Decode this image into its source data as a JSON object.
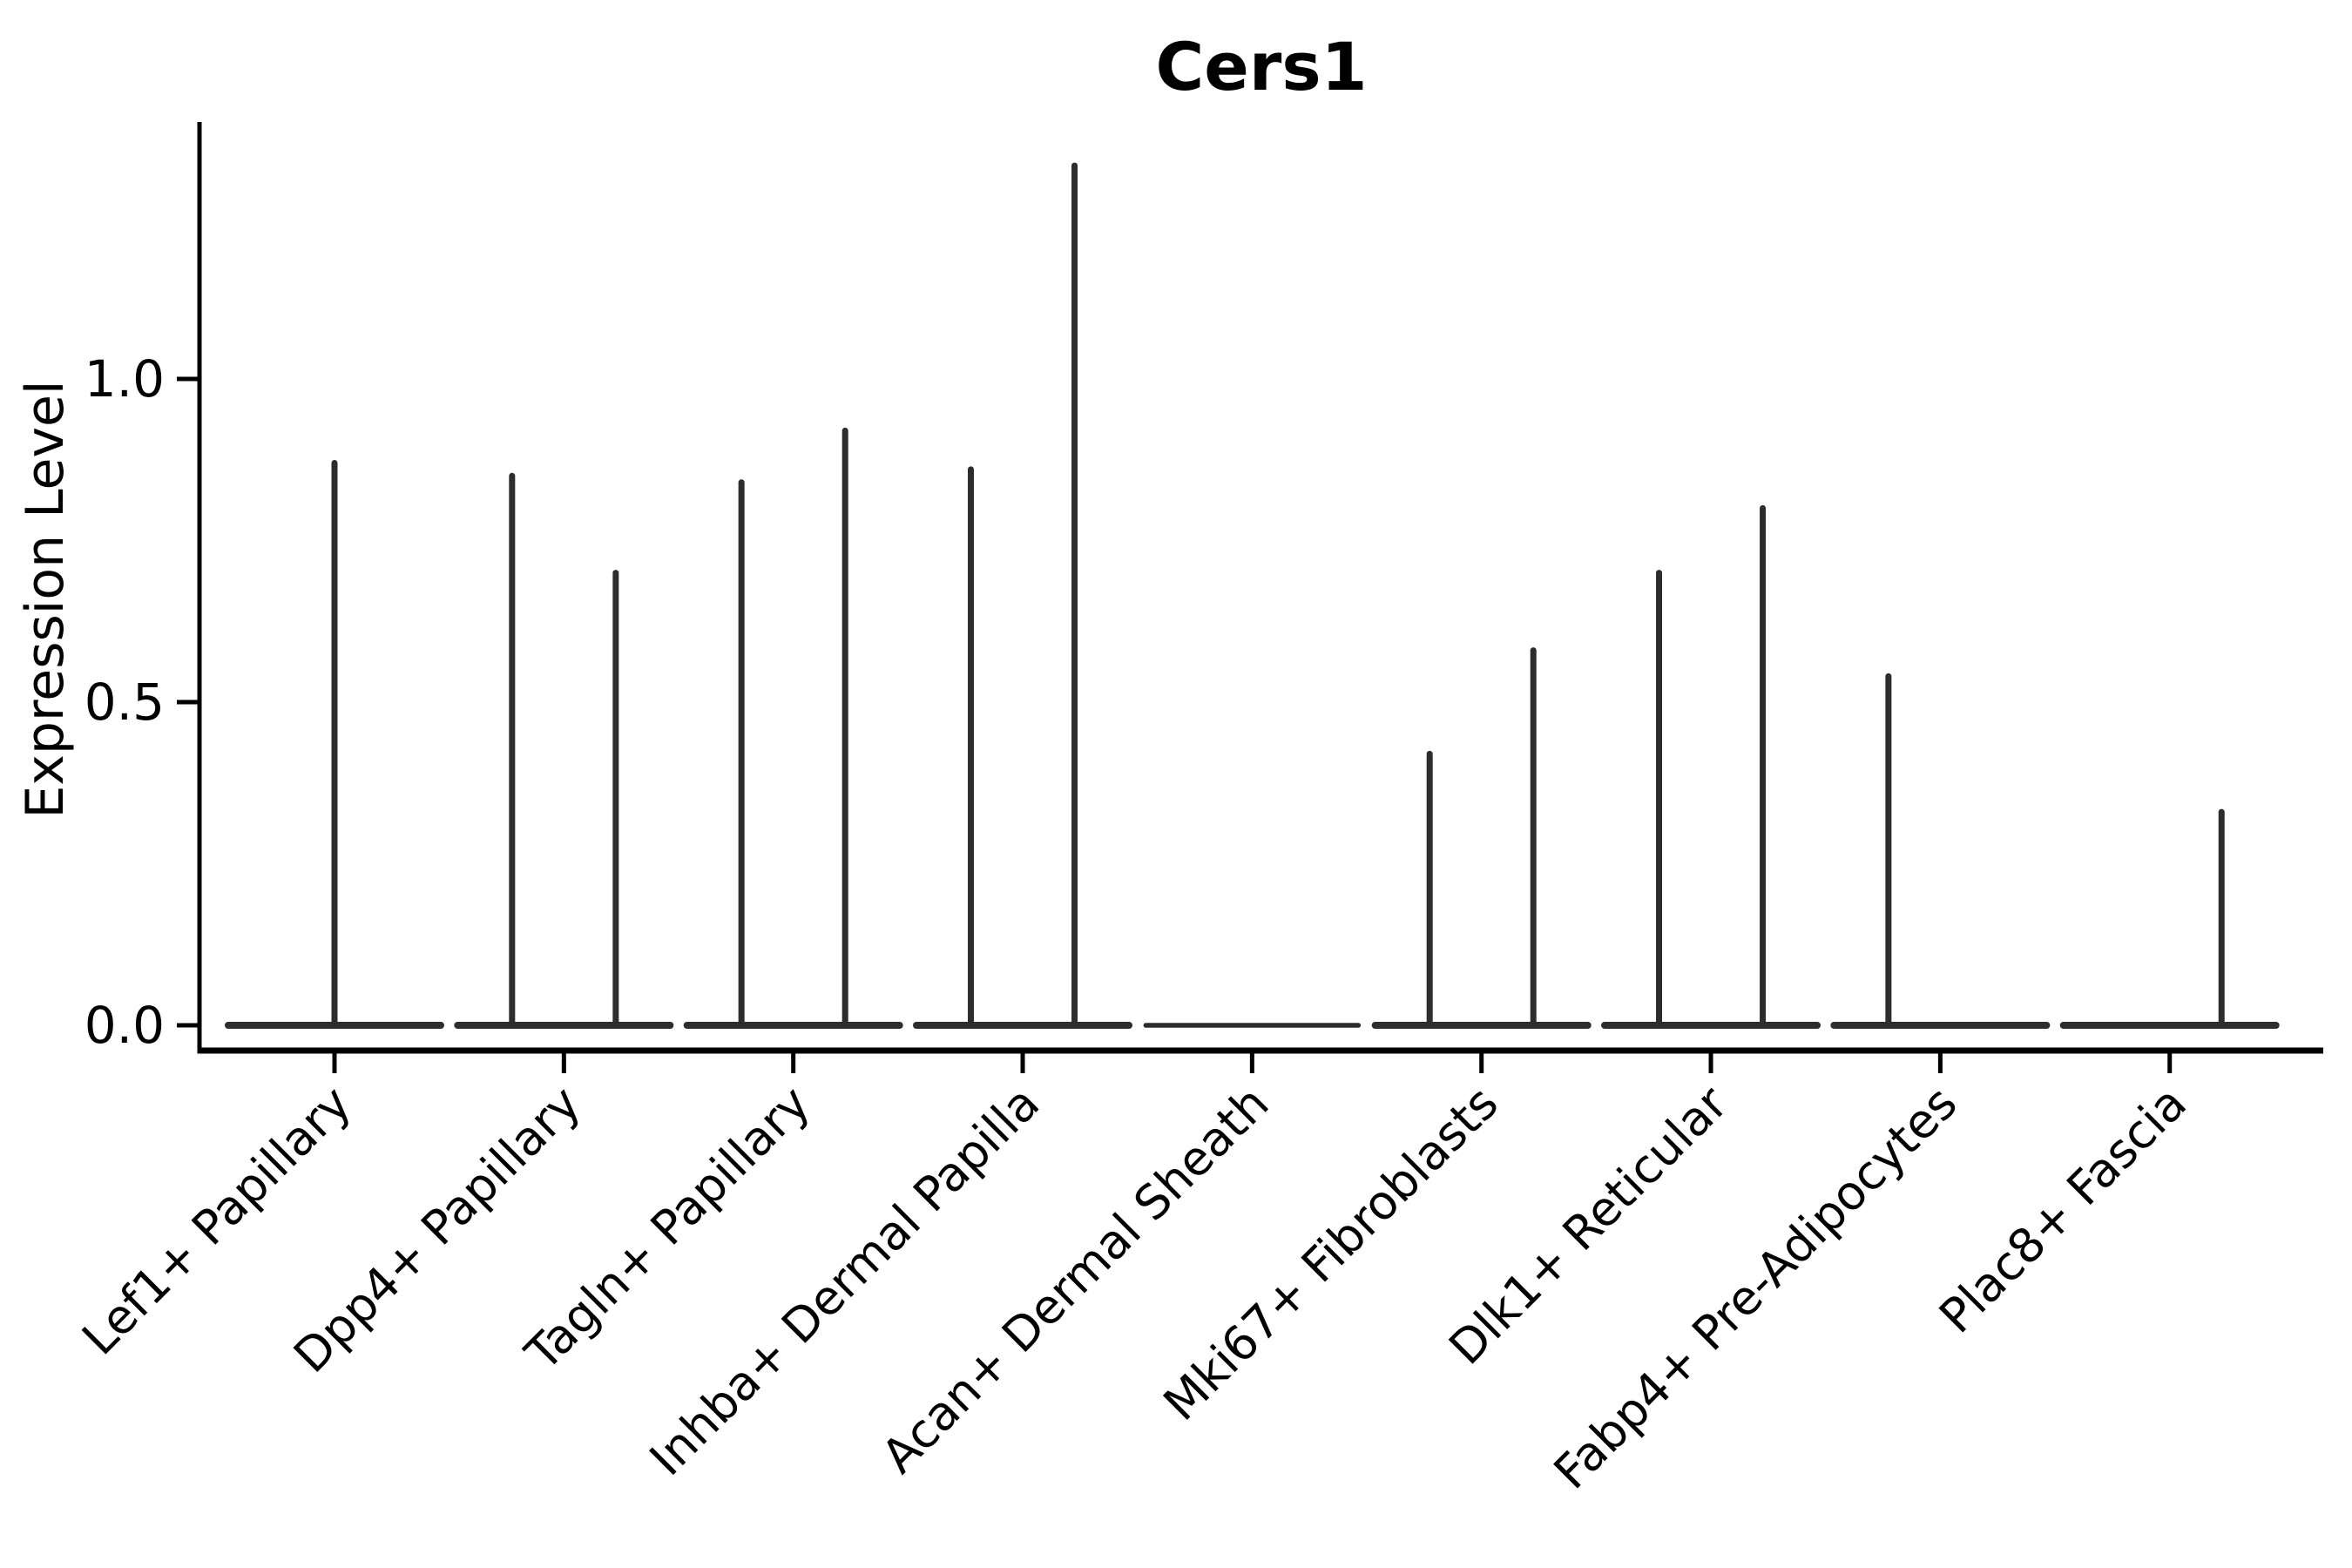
{
  "chart_data": {
    "type": "violin",
    "title": "Cers1",
    "xlabel": "",
    "ylabel": "Expression Level",
    "ylim": [
      -0.07,
      1.4
    ],
    "yticks": [
      0.0,
      0.5,
      1.0
    ],
    "ytick_labels": [
      "0.0",
      "0.5",
      "1.0"
    ],
    "grid": false,
    "legend": "none",
    "violin_color": "#2d2d2d",
    "axis_color": "#000000",
    "categories": [
      "Lef1+ Papillary",
      "Dpp4+ Papillary",
      "Tagln+ Papillary",
      "Inhba+ Dermal Papilla",
      "Acan+ Dermal Sheath",
      "Mki67+ Fibroblasts",
      "Dlk1+ Reticular",
      "Fabp4+ Pre-Adipocytes",
      "Plac8+ Fascia"
    ],
    "violins": [
      {
        "category": "Lef1+ Papillary",
        "body_value": 0.0,
        "thin_body": false,
        "spikes": [
          {
            "offset_frac": 0.0,
            "max_value": 0.87
          }
        ]
      },
      {
        "category": "Dpp4+ Papillary",
        "body_value": 0.0,
        "thin_body": false,
        "spikes": [
          {
            "offset_frac": -0.226,
            "max_value": 0.85
          },
          {
            "offset_frac": 0.226,
            "max_value": 0.7
          }
        ]
      },
      {
        "category": "Tagln+ Papillary",
        "body_value": 0.0,
        "thin_body": false,
        "spikes": [
          {
            "offset_frac": -0.226,
            "max_value": 0.84
          },
          {
            "offset_frac": 0.226,
            "max_value": 0.92
          }
        ]
      },
      {
        "category": "Inhba+ Dermal Papilla",
        "body_value": 0.0,
        "thin_body": false,
        "spikes": [
          {
            "offset_frac": -0.226,
            "max_value": 0.86
          },
          {
            "offset_frac": 0.226,
            "max_value": 1.33
          }
        ]
      },
      {
        "category": "Acan+ Dermal Sheath",
        "body_value": 0.0,
        "thin_body": true,
        "spikes": []
      },
      {
        "category": "Mki67+ Fibroblasts",
        "body_value": 0.0,
        "thin_body": false,
        "spikes": [
          {
            "offset_frac": -0.226,
            "max_value": 0.42
          },
          {
            "offset_frac": 0.226,
            "max_value": 0.58
          }
        ]
      },
      {
        "category": "Dlk1+ Reticular",
        "body_value": 0.0,
        "thin_body": false,
        "spikes": [
          {
            "offset_frac": -0.226,
            "max_value": 0.7
          },
          {
            "offset_frac": 0.226,
            "max_value": 0.8
          }
        ]
      },
      {
        "category": "Fabp4+ Pre-Adipocytes",
        "body_value": 0.0,
        "thin_body": false,
        "spikes": [
          {
            "offset_frac": -0.226,
            "max_value": 0.54
          }
        ]
      },
      {
        "category": "Plac8+ Fascia",
        "body_value": 0.0,
        "thin_body": false,
        "spikes": [
          {
            "offset_frac": 0.226,
            "max_value": 0.33
          }
        ]
      }
    ]
  }
}
